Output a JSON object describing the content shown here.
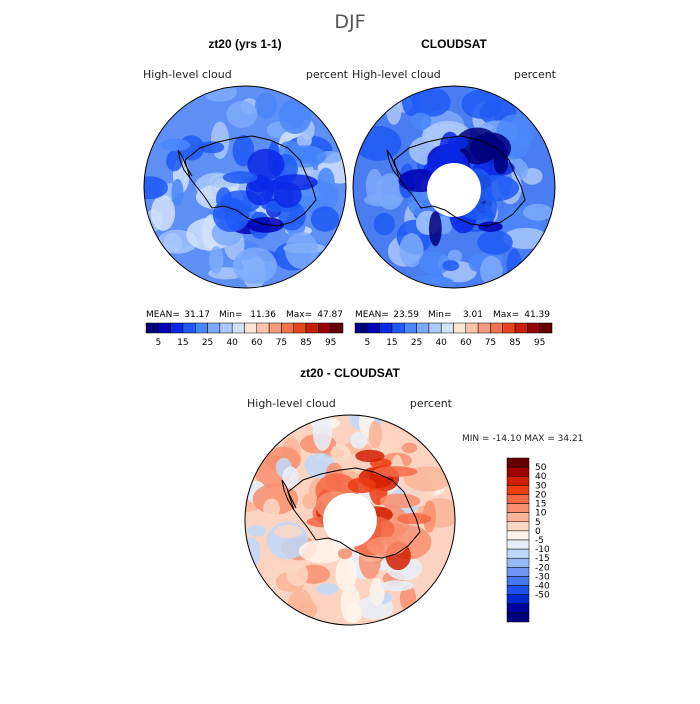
{
  "figure_title": "DJF",
  "colors": {
    "abs_scale": [
      "#00007d",
      "#0000b4",
      "#0a28e6",
      "#1e5af5",
      "#4a87fa",
      "#7caafa",
      "#a9c8fa",
      "#d2e2fa",
      "#fae6d2",
      "#fac3aa",
      "#f59a78",
      "#f0734e",
      "#e6461e",
      "#c81e0a",
      "#960000",
      "#640000"
    ],
    "diff_scale": [
      "#640000",
      "#a00000",
      "#d21e00",
      "#eb3c14",
      "#f56946",
      "#f78f6e",
      "#fab496",
      "#fad7c3",
      "#fff5eb",
      "#e6f0fa",
      "#bed7fa",
      "#96b9f5",
      "#6e96f5",
      "#4678f0",
      "#1e50eb",
      "#0028d2",
      "#0000a0",
      "#00007d"
    ]
  },
  "chart_data": [
    {
      "type": "polar_contour_map",
      "title": "zt20 (yrs 1-1)",
      "variable": "High-level cloud",
      "units": "percent",
      "stats": {
        "mean_label": "MEAN=",
        "mean": "31.17",
        "min_label": "Min=",
        "min": "11.36",
        "max_label": "Max=",
        "max": "47.87"
      },
      "colorbar_ticks": [
        "5",
        "15",
        "25",
        "40",
        "60",
        "75",
        "85",
        "95"
      ]
    },
    {
      "type": "polar_contour_map",
      "title": "CLOUDSAT",
      "variable": "High-level cloud",
      "units": "percent",
      "stats": {
        "mean_label": "MEAN=",
        "mean": "23.59",
        "min_label": "Min=",
        "min": "3.01",
        "max_label": "Max=",
        "max": "41.39"
      },
      "colorbar_ticks": [
        "5",
        "15",
        "25",
        "40",
        "60",
        "75",
        "85",
        "95"
      ]
    },
    {
      "type": "polar_contour_map",
      "title": "zt20 - CLOUDSAT",
      "variable": "High-level cloud",
      "units": "percent",
      "stats_text": "MIN = -14.10 MAX =  34.21",
      "colorbar_labels": [
        "50",
        "40",
        "30",
        "20",
        "15",
        "10",
        "5",
        "0",
        "-5",
        "-10",
        "-15",
        "-20",
        "-30",
        "-40",
        "-50"
      ]
    }
  ]
}
